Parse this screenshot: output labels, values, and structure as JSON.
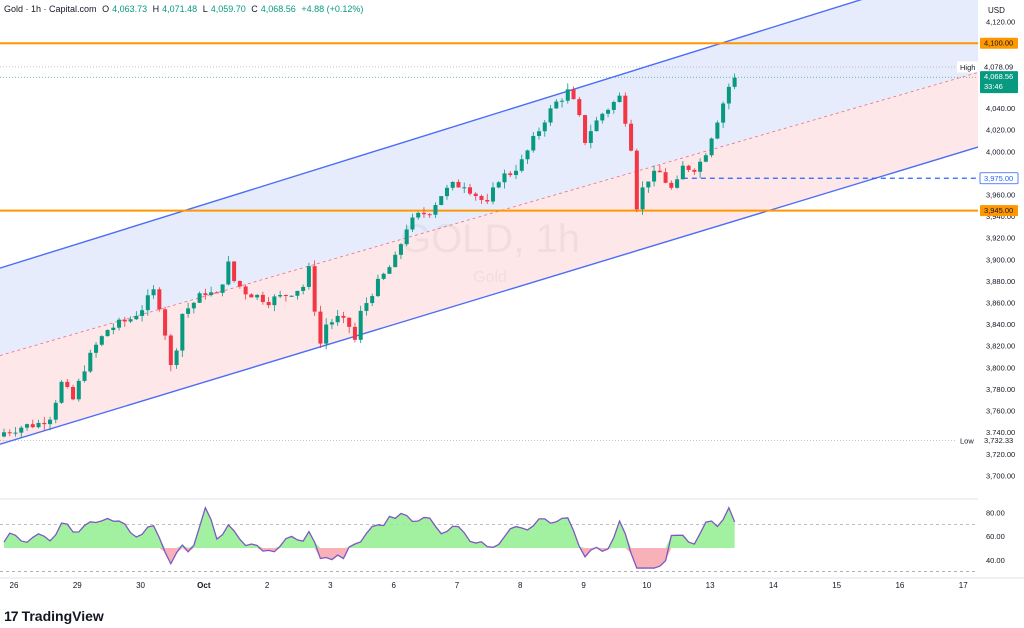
{
  "header": {
    "symbol": "Gold · 1h · Capital.com",
    "open_label": "O",
    "open": "4,063.73",
    "high_label": "H",
    "high": "4,071.48",
    "low_label": "L",
    "low": "4,059.70",
    "close_label": "C",
    "close": "4,068.56",
    "change": "+4.88 (+0.12%)"
  },
  "currency": "USD",
  "watermark": {
    "symbol": "GOLD, 1h",
    "name": "Gold"
  },
  "footer": {
    "logo": "TradingView",
    "logo_icon": "tradingview-logo"
  },
  "colors": {
    "up": "#089981",
    "down": "#f23645",
    "channel": "#4c6ef5",
    "level": "#ff9800",
    "rsi_line": "#7e57c2",
    "rsi_up_fill": "#90ee90",
    "rsi_down_fill": "#f7a8b0"
  },
  "chart_data": {
    "type": "candlestick",
    "price_axis": {
      "min": 3680,
      "max": 4140,
      "ticks": [
        "4,120.00",
        "4,060.00",
        "4,040.00",
        "4,020.00",
        "4,000.00",
        "3,960.00",
        "3,940.00",
        "3,920.00",
        "3,900.00",
        "3,880.00",
        "3,860.00",
        "3,840.00",
        "3,820.00",
        "3,800.00",
        "3,780.00",
        "3,760.00",
        "3,740.00",
        "3,720.00",
        "3,700.00"
      ],
      "tick_values": [
        4120,
        4060,
        4040,
        4020,
        4000,
        3960,
        3940,
        3920,
        3900,
        3880,
        3860,
        3840,
        3820,
        3800,
        3780,
        3760,
        3740,
        3720,
        3700
      ]
    },
    "price_labels": [
      {
        "text": "4,100.00",
        "value": 4100,
        "kind": "level"
      },
      {
        "text": "4,078.09",
        "value": 4078.09,
        "kind": "high",
        "tag": "High"
      },
      {
        "text": "4,068.56",
        "value": 4068.56,
        "kind": "last",
        "sub": "33:46"
      },
      {
        "text": "3,975.00",
        "value": 3975,
        "kind": "dashed"
      },
      {
        "text": "3,945.00",
        "value": 3945,
        "kind": "level"
      },
      {
        "text": "3,732.33",
        "value": 3732.33,
        "kind": "low",
        "tag": "Low"
      }
    ],
    "x_axis": {
      "labels": [
        "26",
        "29",
        "30",
        "Oct",
        "2",
        "3",
        "6",
        "7",
        "8",
        "9",
        "10",
        "13",
        "14",
        "15",
        "16",
        "17"
      ],
      "label_bars": [
        0,
        11,
        22,
        33,
        44,
        55,
        66,
        77,
        88,
        99,
        110,
        121,
        132,
        143,
        154,
        165
      ]
    },
    "total_bars": 170,
    "channel": {
      "upper": [
        [
          0,
          3893
        ],
        [
          150,
          4142
        ]
      ],
      "lower": [
        [
          0,
          3730
        ],
        [
          170,
          4005
        ]
      ],
      "mid": [
        [
          0,
          3812
        ],
        [
          170,
          4074
        ]
      ]
    },
    "horizontal_levels": [
      4100,
      3945
    ],
    "dashed_segment": {
      "value": 3975,
      "from_bar": 118,
      "to_bar": 170
    },
    "anchors": [
      [
        0,
        3740
      ],
      [
        3,
        3745
      ],
      [
        6,
        3748
      ],
      [
        8,
        3755
      ],
      [
        10,
        3785
      ],
      [
        12,
        3770
      ],
      [
        14,
        3800
      ],
      [
        16,
        3820
      ],
      [
        18,
        3835
      ],
      [
        20,
        3840
      ],
      [
        22,
        3845
      ],
      [
        24,
        3855
      ],
      [
        26,
        3870
      ],
      [
        27,
        3858
      ],
      [
        28,
        3832
      ],
      [
        29,
        3800
      ],
      [
        30,
        3820
      ],
      [
        31,
        3850
      ],
      [
        33,
        3860
      ],
      [
        35,
        3870
      ],
      [
        37,
        3866
      ],
      [
        39,
        3895
      ],
      [
        40,
        3880
      ],
      [
        42,
        3870
      ],
      [
        44,
        3866
      ],
      [
        46,
        3862
      ],
      [
        48,
        3865
      ],
      [
        50,
        3870
      ],
      [
        52,
        3875
      ],
      [
        53,
        3890
      ],
      [
        54,
        3855
      ],
      [
        55,
        3822
      ],
      [
        56,
        3840
      ],
      [
        58,
        3845
      ],
      [
        60,
        3838
      ],
      [
        61,
        3825
      ],
      [
        62,
        3850
      ],
      [
        64,
        3870
      ],
      [
        66,
        3885
      ],
      [
        68,
        3900
      ],
      [
        70,
        3930
      ],
      [
        72,
        3940
      ],
      [
        74,
        3945
      ],
      [
        76,
        3960
      ],
      [
        78,
        3968
      ],
      [
        80,
        3970
      ],
      [
        82,
        3960
      ],
      [
        84,
        3950
      ],
      [
        86,
        3975
      ],
      [
        88,
        3980
      ],
      [
        90,
        3990
      ],
      [
        92,
        4010
      ],
      [
        94,
        4030
      ],
      [
        96,
        4045
      ],
      [
        98,
        4055
      ],
      [
        99,
        4045
      ],
      [
        100,
        4030
      ],
      [
        101,
        4010
      ],
      [
        102,
        4020
      ],
      [
        104,
        4035
      ],
      [
        106,
        4045
      ],
      [
        107,
        4050
      ],
      [
        108,
        4030
      ],
      [
        109,
        4005
      ],
      [
        110,
        3950
      ],
      [
        111,
        3965
      ],
      [
        112,
        3975
      ],
      [
        114,
        3980
      ],
      [
        116,
        3965
      ],
      [
        117,
        3970
      ],
      [
        118,
        3985
      ],
      [
        120,
        3985
      ],
      [
        121,
        3990
      ],
      [
        122,
        4000
      ],
      [
        124,
        4030
      ],
      [
        126,
        4060
      ],
      [
        127,
        4068
      ]
    ],
    "rsi": {
      "axis_ticks": [
        "80.00",
        "60.00",
        "40.00"
      ],
      "tick_values": [
        80,
        60,
        40
      ],
      "min": 28,
      "max": 88,
      "upper": 70,
      "lower": 30,
      "mid": 50
    }
  }
}
